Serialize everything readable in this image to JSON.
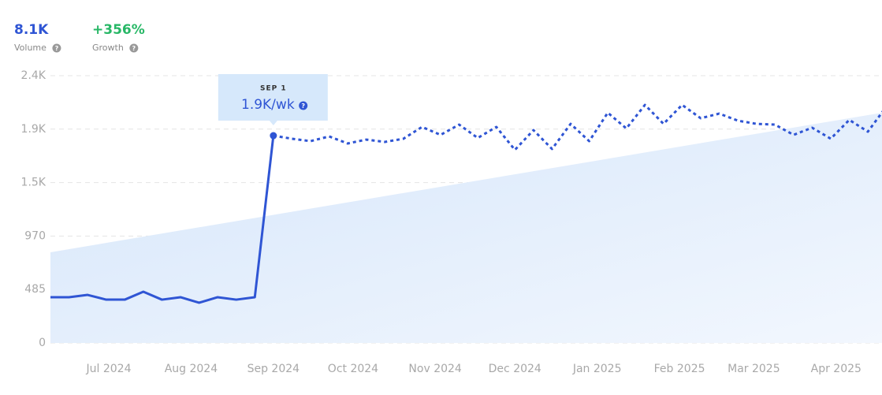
{
  "chart_data": {
    "type": "line",
    "kpis": [
      {
        "value": "8.1K",
        "label": "Volume",
        "color": "#2f55d4"
      },
      {
        "value": "+356%",
        "label": "Growth",
        "color": "#27b766"
      }
    ],
    "tooltip": {
      "label": "SEP 1",
      "value": "1.9K/wk",
      "index": 12
    },
    "x": [
      0,
      1,
      2,
      3,
      4,
      5,
      6,
      7,
      8,
      9,
      10,
      11,
      12,
      13,
      14,
      15,
      16,
      17,
      18,
      19,
      20,
      21,
      22,
      23,
      24,
      25,
      26,
      27,
      28,
      29,
      30,
      31,
      32,
      33,
      34,
      35,
      36,
      37,
      38,
      39,
      40,
      41,
      42,
      43,
      44,
      45
    ],
    "series": [
      {
        "color": "#2f55d4",
        "dashed": false,
        "values": [
          415,
          415,
          436,
          393,
          393,
          465,
          393,
          415,
          365,
          415,
          393,
          415,
          1881,
          null,
          null,
          null,
          null,
          null,
          null,
          null,
          null,
          null,
          null,
          null,
          null,
          null,
          null,
          null,
          null,
          null,
          null,
          null,
          null,
          null,
          null,
          null,
          null,
          null,
          null,
          null,
          null,
          null,
          null,
          null,
          null,
          null
        ]
      },
      {
        "color": "#2f55d4",
        "dashed": true,
        "values": [
          null,
          null,
          null,
          null,
          null,
          null,
          null,
          null,
          null,
          null,
          null,
          null,
          1881,
          1853,
          1831,
          1874,
          1810,
          1845,
          1824,
          1853,
          1960,
          1888,
          1981,
          1860,
          1960,
          1752,
          1931,
          1760,
          1988,
          1831,
          2089,
          1946,
          2160,
          1988,
          2160,
          2039,
          2081,
          2017,
          1988,
          1981,
          1888,
          1953,
          1853,
          2024,
          1917,
          2146
        ]
      }
    ],
    "trend": {
      "x": [
        0,
        44.76
      ],
      "values": [
        823,
        2089
      ],
      "color": "#dbe9fb"
    },
    "xlim": [
      0,
      44.76
    ],
    "xticks": [
      {
        "value": 3.14,
        "label": "Jul 2024"
      },
      {
        "value": 7.57,
        "label": "Aug 2024"
      },
      {
        "value": 12,
        "label": "Sep 2024"
      },
      {
        "value": 16.29,
        "label": "Oct 2024"
      },
      {
        "value": 20.71,
        "label": "Nov 2024"
      },
      {
        "value": 25,
        "label": "Dec 2024"
      },
      {
        "value": 29.43,
        "label": "Jan 2025"
      },
      {
        "value": 33.86,
        "label": "Feb 2025"
      },
      {
        "value": 37.86,
        "label": "Mar 2025"
      },
      {
        "value": 42.29,
        "label": "Apr 2025"
      }
    ],
    "ylim": [
      0,
      2425
    ],
    "yticks": [
      0,
      485,
      970,
      {
        "value": 1455,
        "label": "1.5K"
      },
      {
        "value": 1940,
        "label": "1.9K"
      },
      {
        "value": 2425,
        "label": "2.4K"
      }
    ],
    "grid": true
  }
}
